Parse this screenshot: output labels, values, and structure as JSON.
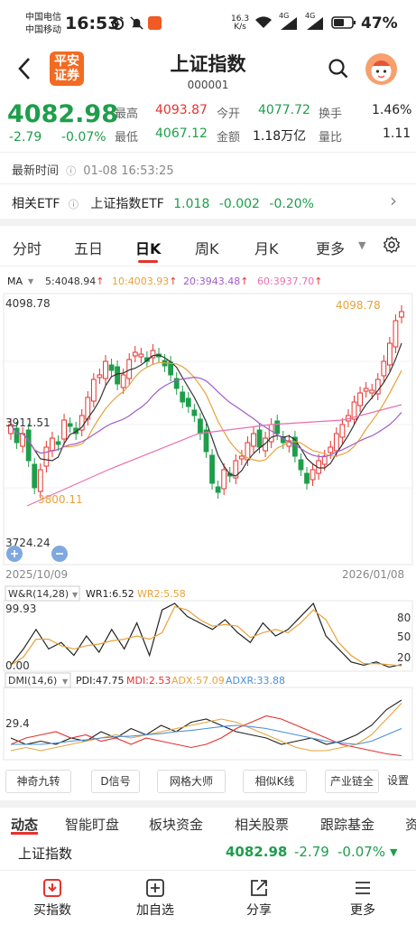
{
  "status_bar": {
    "carrier_1": "中国电信",
    "carrier_2": "中国移动",
    "time": "16:53",
    "net_speed_value": "16.3",
    "net_speed_unit": "K/s",
    "signal_1": "4G",
    "signal_2": "4G",
    "battery": "47%"
  },
  "header": {
    "logo_line1": "平安",
    "logo_line2": "证券",
    "title": "上证指数",
    "code": "000001"
  },
  "quote": {
    "price": "4082.98",
    "change": "-2.79",
    "change_pct": "-0.07%",
    "high_label": "最高",
    "high": "4093.87",
    "low_label": "最低",
    "low": "4067.12",
    "open_label": "今开",
    "open": "4077.72",
    "amount_label": "金额",
    "amount": "1.18万亿",
    "turnover_label": "换手",
    "turnover": "1.46%",
    "volume_ratio_label": "量比",
    "volume_ratio": "1.11"
  },
  "latest_time": {
    "label": "最新时间",
    "value": "01-08 16:53:25"
  },
  "etf": {
    "label": "相关ETF",
    "name": "上证指数ETF",
    "price": "1.018",
    "change": "-0.002",
    "change_pct": "-0.20%"
  },
  "tabs": {
    "items": [
      "分时",
      "五日",
      "日K",
      "周K",
      "月K",
      "更多"
    ],
    "active": "日K"
  },
  "ma": {
    "label": "MA",
    "ma5": "5:4048.94",
    "ma10": "10:4003.93",
    "ma20": "20:3943.48",
    "ma60": "60:3937.70",
    "arrow": "↑"
  },
  "colors": {
    "up": "#e5322d",
    "down": "#1e9e4b",
    "ma5": "#333333",
    "ma10": "#e8a23a",
    "ma20": "#a05cc8",
    "ma60": "#e96fb0"
  },
  "kchart": {
    "top_price": "4098.78",
    "max_label": "4098.78",
    "min_label": "3800.11",
    "mid_price": "3911.51",
    "bottom_price": "3724.24",
    "start_date": "2025/10/09",
    "end_date": "2026/01/08"
  },
  "wr": {
    "title": "W&R(14,28)",
    "wr1": "WR1:6.52",
    "wr2": "WR2:5.58",
    "top": "99.93",
    "bottom": "0.00",
    "ticks": [
      "80",
      "50",
      "20"
    ]
  },
  "dmi": {
    "title": "DMI(14,6)",
    "pdi": "PDI:47.75",
    "mdi": "MDI:2.53",
    "adx": "ADX:57.09",
    "adxr": "ADXR:33.88",
    "level": "29.4"
  },
  "tools": [
    "神奇九转",
    "D信号",
    "网格大师",
    "相似K线",
    "产业链全",
    "设置"
  ],
  "sub_tabs": [
    "动态",
    "智能盯盘",
    "板块资金",
    "相关股票",
    "跟踪基金",
    "资"
  ],
  "ticker": {
    "name": "上证指数",
    "price": "4082.98",
    "change": "-2.79",
    "change_pct": "-0.07%"
  },
  "nav": [
    "买指数",
    "加自选",
    "分享",
    "更多"
  ]
}
